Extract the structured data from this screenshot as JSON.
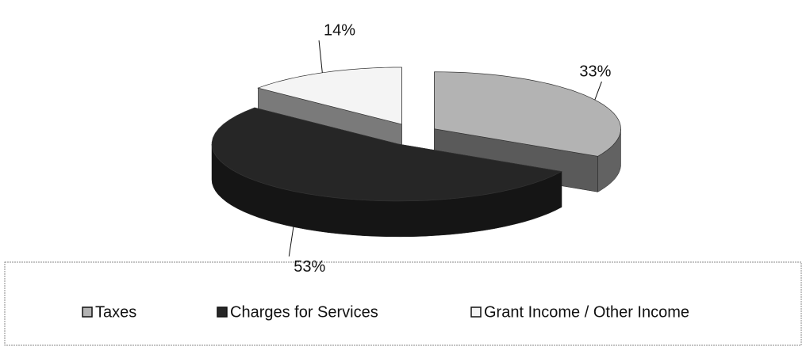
{
  "chart_data": {
    "type": "pie",
    "categories": [
      "Taxes",
      "Charges for Services",
      "Grant Income / Other Income"
    ],
    "values": [
      33,
      53,
      14
    ],
    "value_labels": [
      "33%",
      "53%",
      "14%"
    ],
    "colors": [
      "#b3b3b3",
      "#262626",
      "#f4f4f4"
    ],
    "legend": "bottom"
  }
}
